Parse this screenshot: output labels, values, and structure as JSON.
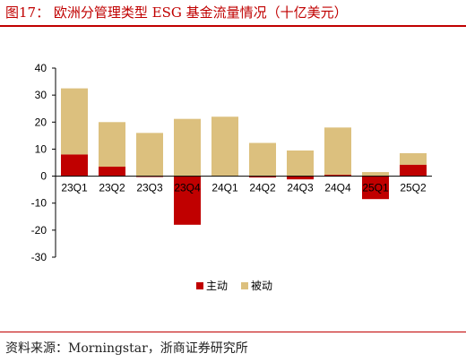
{
  "header": {
    "title": "图17： 欧洲分管理类型 ESG 基金流量情况（十亿美元）"
  },
  "footer": {
    "source": "资料来源：Morningstar，浙商证券研究所"
  },
  "chart_data": {
    "type": "bar",
    "stacked": true,
    "categories": [
      "23Q1",
      "23Q2",
      "23Q3",
      "23Q4",
      "24Q1",
      "24Q2",
      "24Q3",
      "24Q4",
      "25Q1",
      "25Q2"
    ],
    "series": [
      {
        "name": "主动",
        "color": "#c00000",
        "values": [
          8.0,
          3.5,
          -0.3,
          -18.0,
          0.0,
          -0.5,
          -1.2,
          0.5,
          -8.5,
          4.2
        ]
      },
      {
        "name": "被动",
        "color": "#dcc07e",
        "values": [
          24.5,
          16.5,
          16.0,
          21.2,
          22.0,
          12.3,
          9.5,
          17.5,
          1.5,
          4.3
        ]
      }
    ],
    "yticks": [
      40,
      30,
      20,
      10,
      0,
      -10,
      -20,
      -30
    ],
    "ylim": [
      -30,
      40
    ],
    "grid": false,
    "legend_position": "bottom"
  }
}
